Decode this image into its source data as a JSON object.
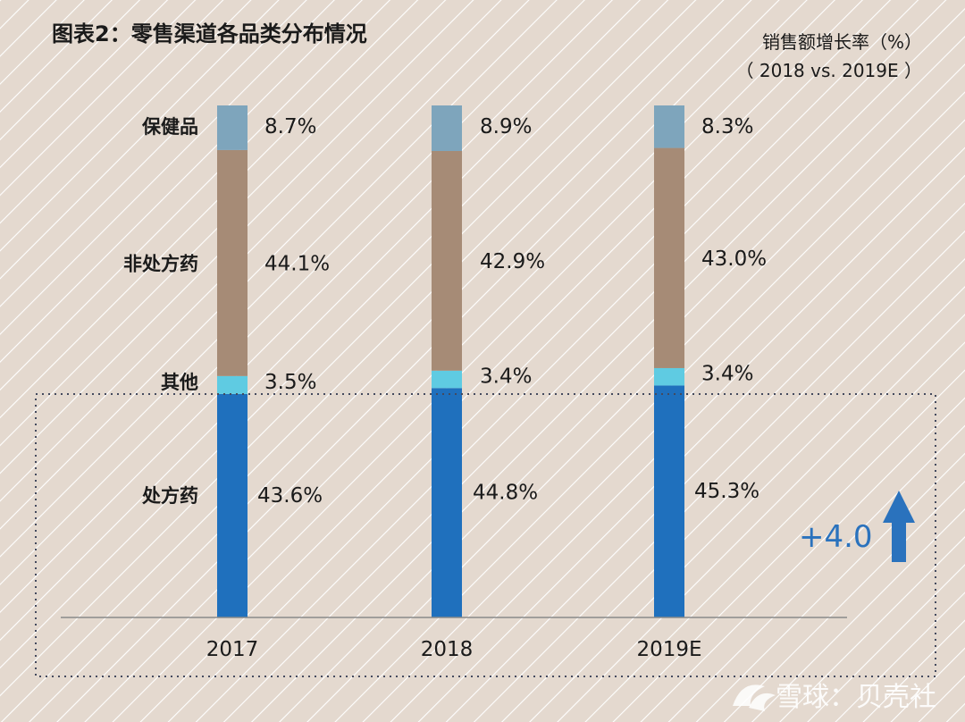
{
  "colors": {
    "background": "#e4d9cf",
    "stripe": "#ffffff",
    "rx": "#1f70bd",
    "other": "#5fcbe2",
    "otc": "#a68b76",
    "health": "#7ea5bc",
    "baseline": "#8a8a8a",
    "dotted_box": "#444a5e",
    "accent": "#2a72bd"
  },
  "header": {
    "title": "图表2：零售渠道各品类分布情况",
    "note_line1": "销售额增长率（%）",
    "note_line2": "（ 2018 vs. 2019E ）"
  },
  "highlight": {
    "delta_text": "+4.0",
    "icon": "up-arrow-icon"
  },
  "watermark": {
    "text": "雪球：贝壳社",
    "icon": "snowball-logo"
  },
  "chart_data": {
    "type": "bar",
    "stacked": true,
    "percent_stacked": true,
    "categories": [
      "2017",
      "2018",
      "2019E"
    ],
    "series": [
      {
        "name": "处方药",
        "values": [
          43.6,
          44.8,
          45.3
        ],
        "labels": [
          "43.6%",
          "44.8%",
          "45.3%"
        ],
        "color": "#1f70bd"
      },
      {
        "name": "其他",
        "values": [
          3.5,
          3.4,
          3.4
        ],
        "labels": [
          "3.5%",
          "3.4%",
          "3.4%"
        ],
        "color": "#5fcbe2"
      },
      {
        "name": "非处方药",
        "values": [
          44.1,
          42.9,
          43.0
        ],
        "labels": [
          "44.1%",
          "42.9%",
          "43.0%"
        ],
        "color": "#a68b76"
      },
      {
        "name": "保健品",
        "values": [
          8.7,
          8.9,
          8.3
        ],
        "labels": [
          "8.7%",
          "8.9%",
          "8.3%"
        ],
        "color": "#7ea5bc"
      }
    ],
    "ylim": [
      0,
      100
    ],
    "grid": false,
    "legend": "left"
  }
}
